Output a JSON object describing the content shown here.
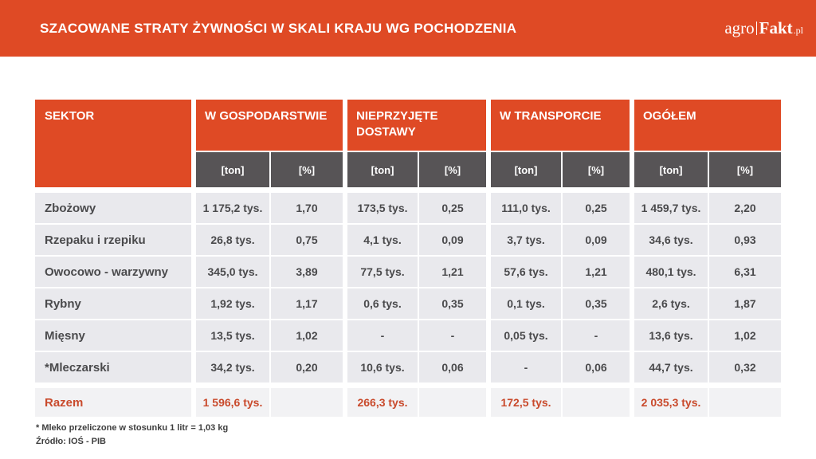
{
  "page": {
    "logo": {
      "prefix": "agro",
      "bold": "Fakt",
      "suffix": ".pl"
    },
    "footnote_line1": "* Mleko przeliczone w stosunku 1 litr = 1,03 kg",
    "footnote_line2": "Źródło: IOŚ - PIB"
  },
  "colors": {
    "accent_orange": "#DF4A25",
    "subheader_gray": "#575456",
    "cell_background": "#E9E9ED",
    "total_row_background": "#F2F2F4",
    "body_text": "#4A4A4C",
    "total_text": "#C94A2C"
  },
  "chart_data": {
    "type": "table",
    "title": "SZACOWANE STRATY ŻYWNOŚCI W SKALI KRAJU WG POCHODZENIA",
    "header": {
      "sector": "SEKTOR",
      "groups": [
        "W GOSPODARSTWIE",
        "NIEPRZYJĘTE DOSTAWY",
        "W TRANSPORCIE",
        "OGÓŁEM"
      ],
      "unit_ton": "[ton]",
      "unit_pct": "[%]"
    },
    "rows": [
      {
        "sector": "Zbożowy",
        "values": [
          "1 175,2 tys.",
          "1,70",
          "173,5 tys.",
          "0,25",
          "111,0 tys.",
          "0,25",
          "1 459,7 tys.",
          "2,20"
        ]
      },
      {
        "sector": "Rzepaku i rzepiku",
        "values": [
          "26,8 tys.",
          "0,75",
          "4,1 tys.",
          "0,09",
          "3,7 tys.",
          "0,09",
          "34,6 tys.",
          "0,93"
        ]
      },
      {
        "sector": "Owocowo - warzywny",
        "values": [
          "345,0 tys.",
          "3,89",
          "77,5 tys.",
          "1,21",
          "57,6 tys.",
          "1,21",
          "480,1 tys.",
          "6,31"
        ]
      },
      {
        "sector": "Rybny",
        "values": [
          "1,92 tys.",
          "1,17",
          "0,6 tys.",
          "0,35",
          "0,1 tys.",
          "0,35",
          "2,6 tys.",
          "1,87"
        ]
      },
      {
        "sector": "Mięsny",
        "values": [
          "13,5 tys.",
          "1,02",
          "-",
          "-",
          "0,05 tys.",
          "-",
          "13,6 tys.",
          "1,02"
        ]
      },
      {
        "sector": "*Mleczarski",
        "values": [
          "34,2 tys.",
          "0,20",
          "10,6 tys.",
          "0,06",
          "-",
          "0,06",
          "44,7 tys.",
          "0,32"
        ]
      }
    ],
    "total": {
      "sector": "Razem",
      "values": [
        "1 596,6 tys.",
        "",
        "266,3 tys.",
        "",
        "172,5 tys.",
        "",
        "2 035,3 tys.",
        ""
      ]
    }
  }
}
